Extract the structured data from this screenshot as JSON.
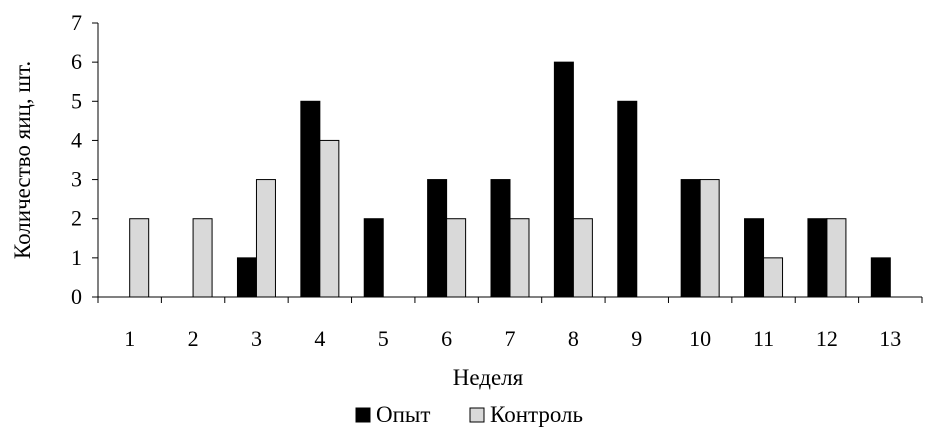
{
  "chart_data": {
    "type": "bar",
    "xlabel": "Неделя",
    "ylabel": "Количество яиц, шт.",
    "categories": [
      "1",
      "2",
      "3",
      "4",
      "5",
      "6",
      "7",
      "8",
      "9",
      "10",
      "11",
      "12",
      "13"
    ],
    "ylim": [
      0,
      7
    ],
    "yticks": [
      "0",
      "1",
      "2",
      "3",
      "4",
      "5",
      "6",
      "7"
    ],
    "grid": false,
    "legend_position": "bottom",
    "series": [
      {
        "name": "Опыт",
        "color": "#000000",
        "values": [
          0,
          0,
          1,
          5,
          2,
          3,
          3,
          6,
          5,
          3,
          2,
          2,
          1
        ]
      },
      {
        "name": "Контроль",
        "color": "#d9d9d9",
        "values": [
          2,
          2,
          3,
          4,
          0,
          2,
          2,
          2,
          0,
          3,
          1,
          2,
          0
        ]
      }
    ]
  }
}
